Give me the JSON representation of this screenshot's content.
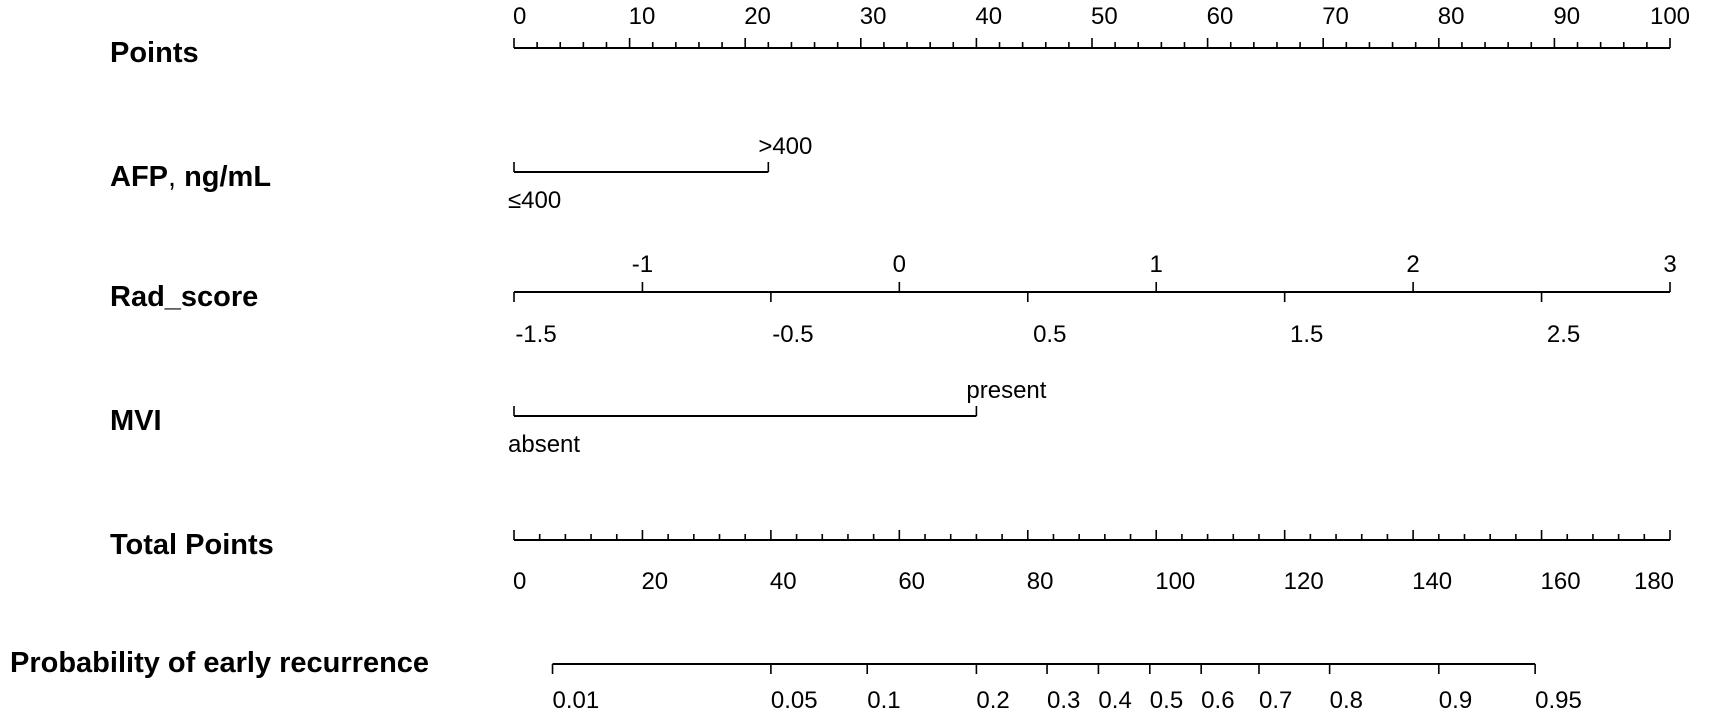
{
  "chart_data": {
    "type": "nomogram",
    "rows": [
      {
        "key": "points",
        "label": "Points",
        "scale": {
          "min": 0,
          "max": 100,
          "major_step": 10,
          "minor_step": 2
        },
        "tick_labels": [
          "0",
          "10",
          "20",
          "30",
          "40",
          "50",
          "60",
          "70",
          "80",
          "90",
          "100"
        ],
        "labels_position": "above"
      },
      {
        "key": "afp",
        "label_main": "AFP",
        "label_sep": ",",
        "label_unit": "ng/mL",
        "categories": [
          {
            "label": "≤400",
            "points": 0,
            "label_position": "below"
          },
          {
            "label": ">400",
            "points": 22,
            "label_position": "above"
          }
        ]
      },
      {
        "key": "rad_score",
        "label": "Rad_score",
        "scale": {
          "min": -1.5,
          "max": 3.0,
          "step": 0.5
        },
        "points_range": [
          0,
          100
        ],
        "upper_tick_labels": [
          "-1",
          "0",
          "1",
          "2",
          "3"
        ],
        "upper_values": [
          -1,
          0,
          1,
          2,
          3
        ],
        "lower_tick_labels": [
          "-1.5",
          "-0.5",
          "0.5",
          "1.5",
          "2.5"
        ],
        "lower_values": [
          -1.5,
          -0.5,
          0.5,
          1.5,
          2.5
        ]
      },
      {
        "key": "mvi",
        "label": "MVI",
        "categories": [
          {
            "label": "absent",
            "points": 0,
            "label_position": "below"
          },
          {
            "label": "present",
            "points": 40,
            "label_position": "above"
          }
        ]
      },
      {
        "key": "total_points",
        "label": "Total Points",
        "scale": {
          "min": 0,
          "max": 180,
          "major_step": 20,
          "minor_step": 4
        },
        "tick_labels": [
          "0",
          "20",
          "40",
          "60",
          "80",
          "100",
          "120",
          "140",
          "160",
          "180"
        ],
        "labels_position": "below"
      },
      {
        "key": "probability",
        "label": "Probability of early recurrence",
        "ticks": [
          {
            "label": "0.01",
            "total_points": 6
          },
          {
            "label": "0.05",
            "total_points": 40
          },
          {
            "label": "0.1",
            "total_points": 55
          },
          {
            "label": "0.2",
            "total_points": 72
          },
          {
            "label": "0.3",
            "total_points": 83
          },
          {
            "label": "0.4",
            "total_points": 91
          },
          {
            "label": "0.5",
            "total_points": 99
          },
          {
            "label": "0.6",
            "total_points": 107
          },
          {
            "label": "0.7",
            "total_points": 116
          },
          {
            "label": "0.8",
            "total_points": 127
          },
          {
            "label": "0.9",
            "total_points": 144
          },
          {
            "label": "0.95",
            "total_points": 159
          }
        ]
      }
    ]
  }
}
